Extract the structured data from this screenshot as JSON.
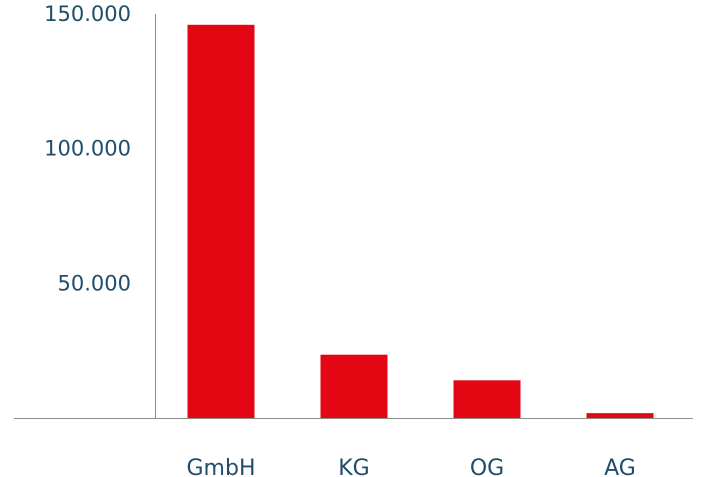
{
  "chart_data": {
    "type": "bar",
    "categories": [
      "GmbH",
      "KG",
      "OG",
      "AG"
    ],
    "values": [
      146000,
      23500,
      14000,
      1800
    ],
    "title": "",
    "xlabel": "",
    "ylabel": "",
    "ylim": [
      0,
      165000
    ],
    "yticks": [
      50000,
      100000,
      150000
    ],
    "ytick_labels": [
      "50.000",
      "100.000",
      "150.000"
    ],
    "grid": false,
    "legend": "none",
    "colors": {
      "bar": "#e30613",
      "text": "#1f4e6b",
      "axis": "#8c8c8c"
    }
  }
}
